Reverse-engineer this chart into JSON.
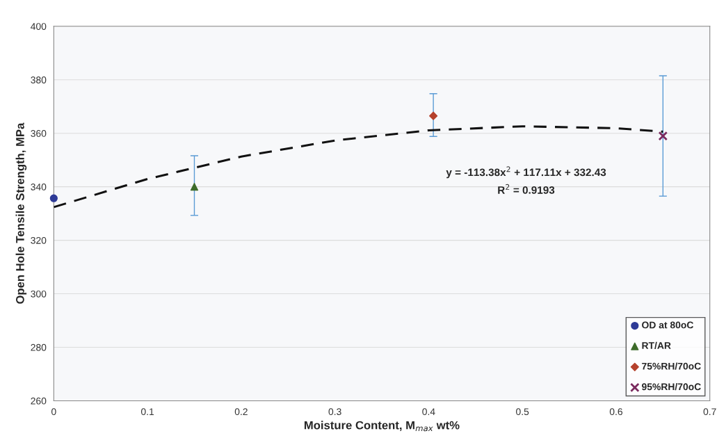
{
  "chart_data": {
    "type": "scatter",
    "xlabel": "Moisture Content, M$_{max}$ wt%",
    "ylabel": "Open Hole Tensile Strength, MPa",
    "xlim": [
      0,
      0.7
    ],
    "xticks": [
      0,
      0.1,
      0.2,
      0.3,
      0.4,
      0.5,
      0.6,
      0.7
    ],
    "ylim": [
      260,
      400
    ],
    "yticks": [
      260,
      280,
      300,
      320,
      340,
      360,
      380,
      400
    ],
    "grid": "y",
    "legend": "bottom right",
    "series": [
      {
        "name": "OD at 80oC",
        "color": "#2e3b97",
        "marker": "circle",
        "x": [
          0
        ],
        "values": [
          335.7
        ]
      },
      {
        "name": "RT/AR",
        "color": "#3d6b2a",
        "marker": "triangle",
        "x": [
          0.15
        ],
        "values": [
          340
        ],
        "errors": [
          [
            329.3,
            351.6
          ]
        ]
      },
      {
        "name": "75%RH/70oC",
        "color": "#b5412c",
        "marker": "diamond",
        "x": [
          0.405
        ],
        "values": [
          366.5
        ],
        "errors": [
          [
            358.8,
            374.8
          ]
        ]
      },
      {
        "name": "95%RH/70oC",
        "color": "#7a2a5e",
        "marker": "cross",
        "x": [
          0.65
        ],
        "values": [
          359
        ],
        "errors": [
          [
            336.5,
            381.5
          ]
        ]
      },
      {
        "type": "line",
        "color": "#111111",
        "line_style": "dashed",
        "marker": "none",
        "x": [
          0,
          0.1,
          0.2,
          0.3,
          0.4,
          0.5,
          0.6,
          0.65
        ],
        "values": [
          332.4,
          342.9,
          351.3,
          357.3,
          361.1,
          362.6,
          361.9,
          360.6
        ]
      }
    ],
    "annotations": [
      "y = -113.38x$^{2}$ + 117.11x + 332.43",
      "R$^{2}$ = 0.9193"
    ]
  }
}
